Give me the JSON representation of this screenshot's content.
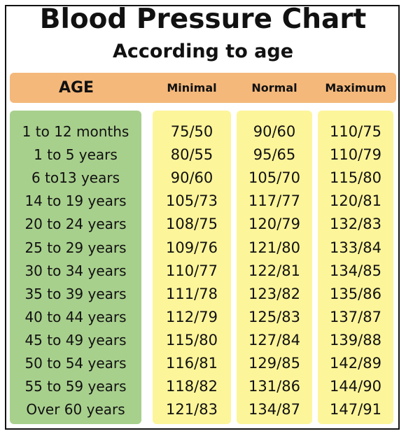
{
  "title": "Blood Pressure Chart",
  "subtitle": "According to age",
  "colors": {
    "header_bar": "#f4b87a",
    "age_column": "#a8d08d",
    "value_columns": "#fdf59a",
    "text": "#111111"
  },
  "chart_data": {
    "type": "table",
    "title": "Blood Pressure Chart",
    "subtitle": "According to age",
    "columns": [
      "AGE",
      "Minimal",
      "Normal",
      "Maximum"
    ],
    "rows": [
      {
        "age": "1 to 12 months",
        "minimal": "75/50",
        "normal": "90/60",
        "maximum": "110/75"
      },
      {
        "age": "1 to 5 years",
        "minimal": "80/55",
        "normal": "95/65",
        "maximum": "110/79"
      },
      {
        "age": "6 to13 years",
        "minimal": "90/60",
        "normal": "105/70",
        "maximum": "115/80"
      },
      {
        "age": "14 to 19 years",
        "minimal": "105/73",
        "normal": "117/77",
        "maximum": "120/81"
      },
      {
        "age": "20 to 24 years",
        "minimal": "108/75",
        "normal": "120/79",
        "maximum": "132/83"
      },
      {
        "age": "25 to 29 years",
        "minimal": "109/76",
        "normal": "121/80",
        "maximum": "133/84"
      },
      {
        "age": "30 to 34 years",
        "minimal": "110/77",
        "normal": "122/81",
        "maximum": "134/85"
      },
      {
        "age": "35 to 39 years",
        "minimal": "111/78",
        "normal": "123/82",
        "maximum": "135/86"
      },
      {
        "age": "40 to 44 years",
        "minimal": "112/79",
        "normal": "125/83",
        "maximum": "137/87"
      },
      {
        "age": "45 to 49 years",
        "minimal": "115/80",
        "normal": "127/84",
        "maximum": "139/88"
      },
      {
        "age": "50 to 54 years",
        "minimal": "116/81",
        "normal": "129/85",
        "maximum": "142/89"
      },
      {
        "age": "55 to 59 years",
        "minimal": "118/82",
        "normal": "131/86",
        "maximum": "144/90"
      },
      {
        "age": "Over 60 years",
        "minimal": "121/83",
        "normal": "134/87",
        "maximum": "147/91"
      }
    ]
  }
}
